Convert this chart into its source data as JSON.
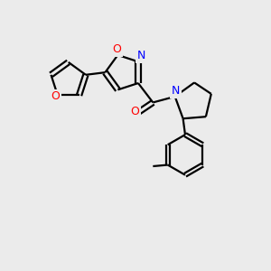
{
  "background_color": "#ebebeb",
  "bond_color": "#000000",
  "oxygen_color": "#ff0000",
  "nitrogen_color": "#0000ff",
  "line_width": 1.6,
  "figsize": [
    3.0,
    3.0
  ],
  "dpi": 100,
  "xlim": [
    0,
    10
  ],
  "ylim": [
    0,
    10
  ]
}
